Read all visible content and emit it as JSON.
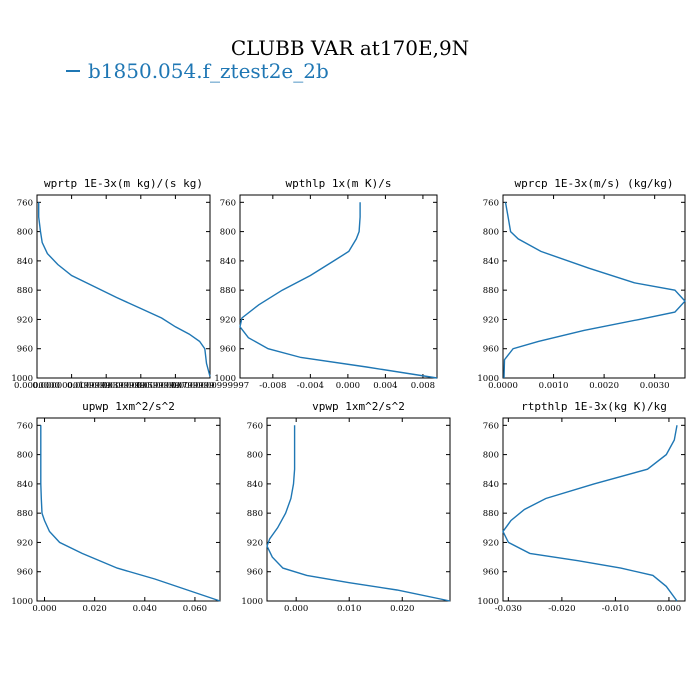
{
  "title": "CLUBB VAR at170E,9N",
  "legend": {
    "label": "b1850.054.f_ztest2e_2b",
    "color": "#1f77b4"
  },
  "chart_data": [
    {
      "type": "line",
      "title": "wprtp  1E-3x(m kg)/(s kg)",
      "xlim": [
        0,
        1e-07
      ],
      "ylim": [
        1000,
        750
      ],
      "yticks": [
        "760",
        "800",
        "840",
        "880",
        "920",
        "960",
        "1000"
      ],
      "xticks": [
        "0.0000000",
        "0.0000000199999",
        "0.0000000399999",
        "0.0000000599999",
        "0.0000000799999",
        "0.0000000999997"
      ],
      "series": [
        {
          "x": [
            1e-09,
            1e-09,
            2e-09,
            3e-09,
            6e-09,
            1.2e-08,
            2e-08,
            3.3e-08,
            4.6e-08,
            6e-08,
            7.2e-08,
            8e-08,
            8.8e-08,
            9.4e-08,
            9.7e-08,
            9.8e-08,
            1e-07
          ],
          "y": [
            760,
            780,
            800,
            815,
            830,
            845,
            860,
            875,
            890,
            905,
            918,
            930,
            940,
            950,
            960,
            980,
            998
          ]
        }
      ]
    },
    {
      "type": "line",
      "title": "wpthlp  1x(m K)/s",
      "xlim": [
        -0.0115,
        0.0095
      ],
      "ylim": [
        1000,
        750
      ],
      "yticks": [
        "760",
        "800",
        "840",
        "880",
        "920",
        "960",
        "1000"
      ],
      "xticks": [
        "-0.008",
        "-0.004",
        "0.000",
        "0.004",
        "0.008"
      ],
      "series": [
        {
          "x": [
            0.0013,
            0.0013,
            0.0012,
            0.0009,
            0.0001,
            -0.0015,
            -0.004,
            -0.007,
            -0.0095,
            -0.0113,
            -0.0115,
            -0.0106,
            -0.0085,
            -0.005,
            0.002,
            0.0095
          ],
          "y": [
            760,
            780,
            800,
            810,
            827,
            840,
            860,
            880,
            900,
            918,
            930,
            945,
            960,
            972,
            985,
            1000
          ]
        }
      ]
    },
    {
      "type": "line",
      "title": "wprcp  1E-3x(m/s) (kg/kg)",
      "xlim": [
        0,
        0.0036
      ],
      "ylim": [
        1000,
        750
      ],
      "yticks": [
        "760",
        "800",
        "840",
        "880",
        "920",
        "960",
        "1000"
      ],
      "xticks": [
        "0.0000",
        "0.0010",
        "0.0020",
        "0.0030"
      ],
      "series": [
        {
          "x": [
            5e-05,
            0.0001,
            0.00015,
            0.0003,
            0.00075,
            0.0017,
            0.0026,
            0.0034,
            0.0036,
            0.0034,
            0.0027,
            0.0016,
            0.0007,
            0.0002,
            3e-05,
            2e-05
          ],
          "y": [
            760,
            780,
            800,
            810,
            827,
            850,
            870,
            880,
            895,
            910,
            920,
            935,
            950,
            960,
            975,
            1000
          ]
        }
      ]
    },
    {
      "type": "line",
      "title": "upwp  1xm^2/s^2",
      "xlim": [
        -0.003,
        0.07
      ],
      "ylim": [
        1000,
        750
      ],
      "yticks": [
        "760",
        "800",
        "840",
        "880",
        "920",
        "960",
        "1000"
      ],
      "xticks": [
        "0.000",
        "0.020",
        "0.040",
        "0.060"
      ],
      "series": [
        {
          "x": [
            -0.0015,
            -0.0015,
            -0.0015,
            -0.0015,
            -0.0013,
            -0.001,
            0.0,
            0.002,
            0.006,
            0.015,
            0.029,
            0.044,
            0.07
          ],
          "y": [
            760,
            780,
            800,
            840,
            860,
            880,
            890,
            905,
            920,
            935,
            955,
            970,
            1000
          ]
        }
      ]
    },
    {
      "type": "line",
      "title": "vpwp  1xm^2/s^2",
      "xlim": [
        -0.0055,
        0.029
      ],
      "ylim": [
        1000,
        750
      ],
      "yticks": [
        "760",
        "800",
        "840",
        "880",
        "920",
        "960",
        "1000"
      ],
      "xticks": [
        "0.000",
        "0.010",
        "0.020"
      ],
      "series": [
        {
          "x": [
            -0.0003,
            -0.0003,
            -0.0003,
            -0.0005,
            -0.001,
            -0.002,
            -0.0035,
            -0.005,
            -0.0055,
            -0.0045,
            -0.0025,
            0.002,
            0.01,
            0.019,
            0.029
          ],
          "y": [
            760,
            780,
            820,
            840,
            860,
            880,
            900,
            915,
            925,
            940,
            955,
            965,
            975,
            985,
            1000
          ]
        }
      ]
    },
    {
      "type": "line",
      "title": "rtpthlp  1E-3x(kg K)/kg",
      "xlim": [
        -0.031,
        0.003
      ],
      "ylim": [
        1000,
        750
      ],
      "yticks": [
        "760",
        "800",
        "840",
        "880",
        "920",
        "960",
        "1000"
      ],
      "xticks": [
        "-0.030",
        "-0.020",
        "-0.010",
        "0.000"
      ],
      "series": [
        {
          "x": [
            0.0015,
            0.001,
            -0.0005,
            -0.004,
            -0.014,
            -0.023,
            -0.027,
            -0.0295,
            -0.031,
            -0.03,
            -0.026,
            -0.017,
            -0.009,
            -0.003,
            -0.0005,
            0.0015
          ],
          "y": [
            760,
            780,
            800,
            820,
            840,
            860,
            875,
            890,
            905,
            920,
            935,
            945,
            955,
            965,
            980,
            1000
          ]
        }
      ]
    }
  ]
}
